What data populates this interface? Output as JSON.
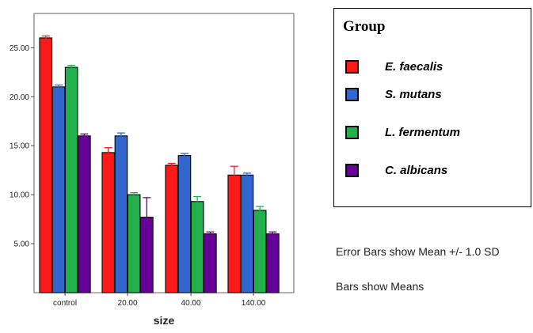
{
  "chart_data": {
    "type": "bar",
    "categories": [
      "control",
      "20.00",
      "40.00",
      "140.00"
    ],
    "xlabel": "size",
    "ylabel": "",
    "ylim": [
      0,
      28.5
    ],
    "yticks": [
      "5.00",
      "10.00",
      "15.00",
      "20.00",
      "25.00"
    ],
    "grid": false,
    "legend_title": "Group",
    "legend_position": "right",
    "error_bars": "Mean +/- 1.0 SD",
    "series": [
      {
        "name": "E. faecalis",
        "color": "#ff1a1a",
        "values": [
          26.0,
          14.3,
          13.0,
          12.0
        ],
        "sd": [
          0.2,
          0.5,
          0.2,
          0.9
        ]
      },
      {
        "name": "S. mutans",
        "color": "#3366cc",
        "values": [
          21.0,
          16.0,
          14.0,
          12.0
        ],
        "sd": [
          0.2,
          0.3,
          0.2,
          0.2
        ]
      },
      {
        "name": "L. fermentum",
        "color": "#22b04c",
        "values": [
          23.0,
          10.0,
          9.3,
          8.4
        ],
        "sd": [
          0.2,
          0.2,
          0.5,
          0.4
        ]
      },
      {
        "name": "C. albicans",
        "color": "#660099",
        "values": [
          16.0,
          7.7,
          6.0,
          6.0
        ],
        "sd": [
          0.2,
          2.0,
          0.2,
          0.2
        ]
      }
    ]
  },
  "notes": {
    "error_bars": "Error Bars show Mean +/- 1.0 SD",
    "bars": "Bars show Means"
  }
}
